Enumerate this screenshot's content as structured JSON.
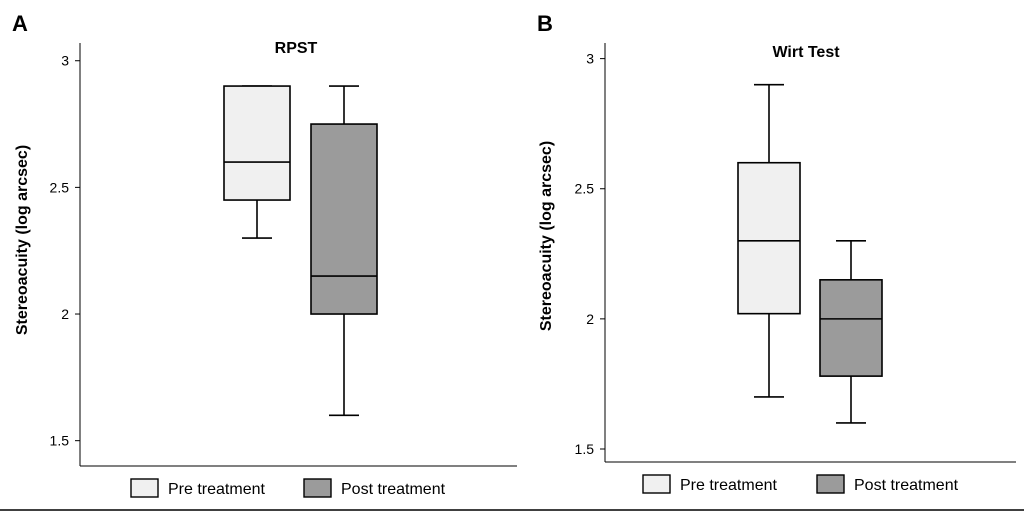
{
  "chart_data": [
    {
      "type": "box",
      "panel": "A",
      "title": "RPST",
      "ylabel": "Stereoacuity (log arcsec)",
      "xlabel": "",
      "ylim": [
        1.4,
        3.07
      ],
      "yticks": [
        1.5,
        2,
        2.5,
        3
      ],
      "ytick_labels": [
        "1.5",
        "2",
        "2.5",
        "3"
      ],
      "series": [
        {
          "name": "Pre treatment",
          "color": "#f0f0f0",
          "min": 2.3,
          "q1": 2.45,
          "median": 2.6,
          "q3": 2.9,
          "max": 2.9
        },
        {
          "name": "Post treatment",
          "color": "#9b9b9b",
          "min": 1.6,
          "q1": 2.0,
          "median": 2.15,
          "q3": 2.75,
          "max": 2.9
        }
      ]
    },
    {
      "type": "box",
      "panel": "B",
      "title": "Wirt Test",
      "ylabel": "Stereoacuity (log arcsec)",
      "xlabel": "",
      "ylim": [
        1.45,
        3.06
      ],
      "yticks": [
        1.5,
        2,
        2.5,
        3
      ],
      "ytick_labels": [
        "1.5",
        "2",
        "2.5",
        "3"
      ],
      "series": [
        {
          "name": "Pre treatment",
          "color": "#f0f0f0",
          "min": 1.7,
          "q1": 2.02,
          "median": 2.3,
          "q3": 2.6,
          "max": 2.9
        },
        {
          "name": "Post treatment",
          "color": "#9b9b9b",
          "min": 1.6,
          "q1": 1.78,
          "median": 2.0,
          "q3": 2.15,
          "max": 2.3
        }
      ]
    }
  ],
  "legend": [
    {
      "label": "Pre treatment",
      "color": "#f0f0f0"
    },
    {
      "label": "Post treatment",
      "color": "#9b9b9b"
    }
  ]
}
